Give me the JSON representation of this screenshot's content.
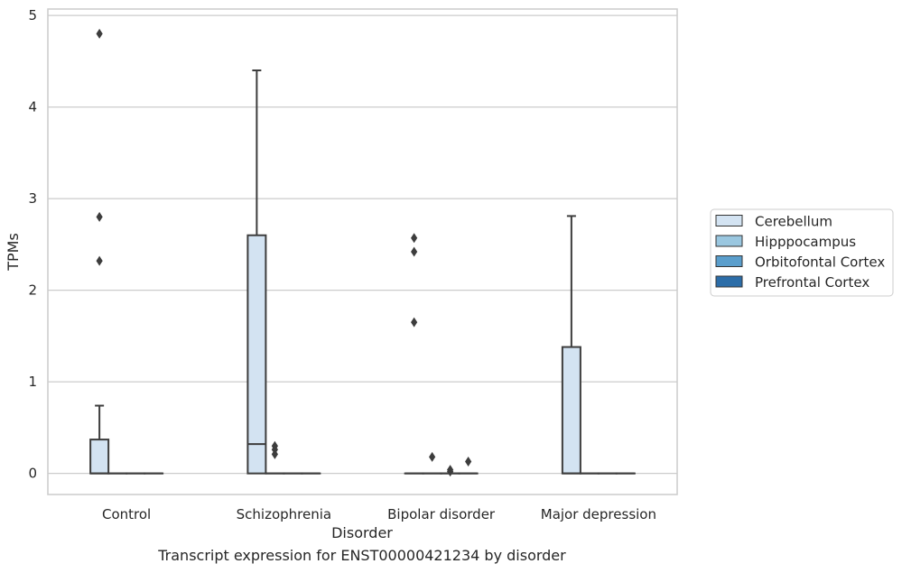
{
  "chart_data": {
    "type": "box",
    "title": "",
    "caption": "Transcript expression for ENST00000421234 by disorder",
    "xlabel": "Disorder",
    "ylabel": "TPMs",
    "ylim": [
      -0.23,
      5.07
    ],
    "yticks": [
      "0",
      "1",
      "2",
      "3",
      "4",
      "5"
    ],
    "grid": "horizontal",
    "legend_position": "right",
    "categories": [
      "Control",
      "Schizophrenia",
      "Bipolar disorder",
      "Major depression"
    ],
    "series": [
      {
        "name": "Cerebellum",
        "color": "#d3e3f2",
        "boxes": [
          {
            "q1": 0,
            "median": 0,
            "q3": 0.37,
            "whisker_low": 0,
            "whisker_high": 0.74,
            "outliers": [
              2.32,
              2.8,
              4.8
            ]
          },
          {
            "q1": 0,
            "median": 0.32,
            "q3": 2.6,
            "whisker_low": 0,
            "whisker_high": 4.4,
            "outliers": []
          },
          {
            "q1": 0,
            "median": 0,
            "q3": 0,
            "whisker_low": 0,
            "whisker_high": 0,
            "outliers": [
              1.65,
              2.42,
              2.57
            ]
          },
          {
            "q1": 0,
            "median": 0,
            "q3": 1.38,
            "whisker_low": 0,
            "whisker_high": 2.81,
            "outliers": []
          }
        ]
      },
      {
        "name": "Hipppocampus",
        "color": "#9ac7e0",
        "boxes": [
          {
            "q1": 0,
            "median": 0,
            "q3": 0,
            "whisker_low": 0,
            "whisker_high": 0,
            "outliers": []
          },
          {
            "q1": 0,
            "median": 0,
            "q3": 0,
            "whisker_low": 0,
            "whisker_high": 0,
            "outliers": [
              0.21,
              0.26,
              0.3
            ]
          },
          {
            "q1": 0,
            "median": 0,
            "q3": 0,
            "whisker_low": 0,
            "whisker_high": 0,
            "outliers": [
              0.18
            ]
          },
          {
            "q1": 0,
            "median": 0,
            "q3": 0,
            "whisker_low": 0,
            "whisker_high": 0,
            "outliers": []
          }
        ]
      },
      {
        "name": "Orbitofontal Cortex",
        "color": "#5a9ecc",
        "boxes": [
          {
            "q1": 0,
            "median": 0,
            "q3": 0,
            "whisker_low": 0,
            "whisker_high": 0,
            "outliers": []
          },
          {
            "q1": 0,
            "median": 0,
            "q3": 0,
            "whisker_low": 0,
            "whisker_high": 0,
            "outliers": []
          },
          {
            "q1": 0,
            "median": 0,
            "q3": 0,
            "whisker_low": 0,
            "whisker_high": 0,
            "outliers": [
              0.02,
              0.04
            ]
          },
          {
            "q1": 0,
            "median": 0,
            "q3": 0,
            "whisker_low": 0,
            "whisker_high": 0,
            "outliers": []
          }
        ]
      },
      {
        "name": "Prefrontal Cortex",
        "color": "#2c6da8",
        "boxes": [
          {
            "q1": 0,
            "median": 0,
            "q3": 0,
            "whisker_low": 0,
            "whisker_high": 0,
            "outliers": []
          },
          {
            "q1": 0,
            "median": 0,
            "q3": 0,
            "whisker_low": 0,
            "whisker_high": 0,
            "outliers": []
          },
          {
            "q1": 0,
            "median": 0,
            "q3": 0,
            "whisker_low": 0,
            "whisker_high": 0,
            "outliers": [
              0.13
            ]
          },
          {
            "q1": 0,
            "median": 0,
            "q3": 0,
            "whisker_low": 0,
            "whisker_high": 0,
            "outliers": []
          }
        ]
      }
    ]
  }
}
